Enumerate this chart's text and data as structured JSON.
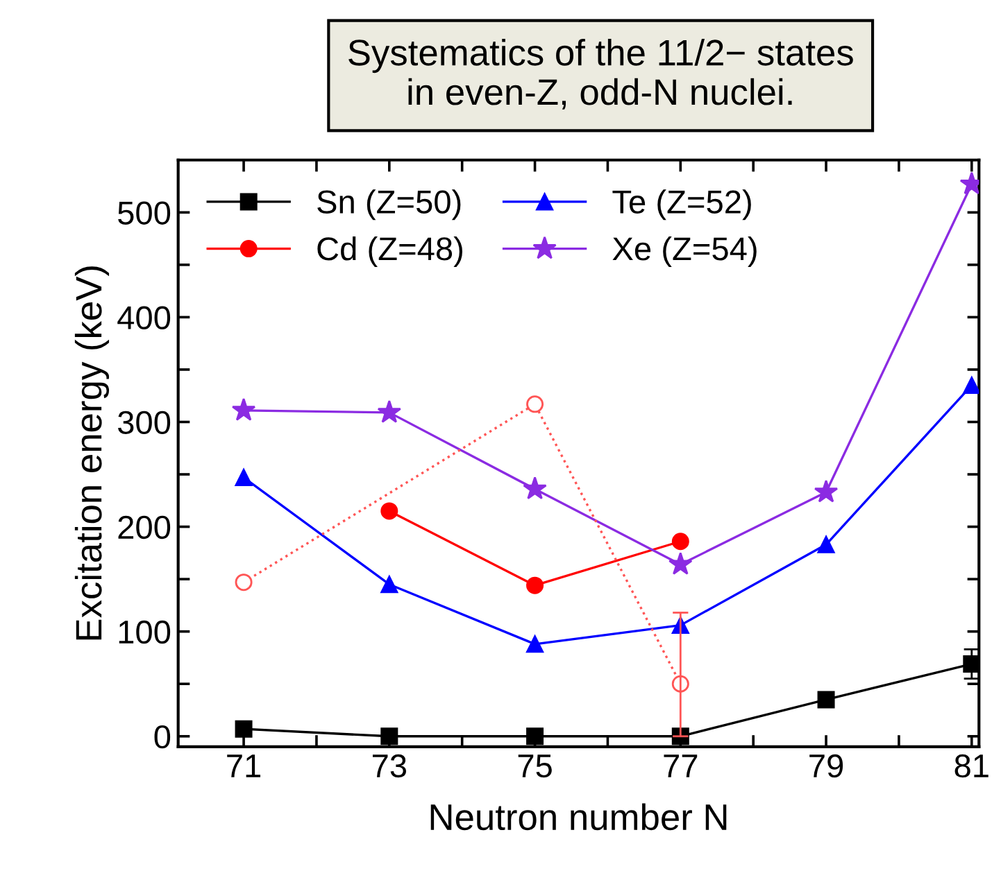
{
  "chart_data": {
    "type": "line",
    "title": "Systematics of the 11/2− states\nin even-Z, odd-N nuclei.",
    "xlabel": "Neutron number N",
    "ylabel": "Excitation energy (keV)",
    "xlim": [
      70.1,
      81.1
    ],
    "ylim": [
      -10,
      550
    ],
    "xticks": [
      71,
      {
        "value": 72,
        "label": null
      },
      73,
      {
        "value": 74,
        "label": null
      },
      75,
      {
        "value": 76,
        "label": null
      },
      77,
      {
        "value": 78,
        "label": null
      },
      79,
      {
        "value": 80,
        "label": null
      },
      81
    ],
    "yticks": [
      0,
      {
        "value": 50,
        "label": null
      },
      100,
      {
        "value": 150,
        "label": null
      },
      200,
      {
        "value": 250,
        "label": null
      },
      300,
      {
        "value": 350,
        "label": null
      },
      400,
      {
        "value": 450,
        "label": null
      },
      500
    ],
    "grid": false,
    "legend": "top left",
    "series": [
      {
        "name": "Sn (Z=50)",
        "color": "#000000",
        "marker": "square",
        "line_style": "solid",
        "x": [
          71,
          73,
          75,
          77,
          79,
          81
        ],
        "values": [
          7,
          0,
          0,
          0,
          35,
          69
        ],
        "errors": [
          null,
          null,
          null,
          null,
          null,
          14
        ]
      },
      {
        "name": "Te (Z=52)",
        "color": "#0000ff",
        "marker": "triangle",
        "line_style": "solid",
        "x": [
          71,
          73,
          75,
          77,
          79,
          81
        ],
        "values": [
          247,
          145,
          88,
          106,
          183,
          335
        ]
      },
      {
        "name": "Cd (Z=48)",
        "color": "#ff0000",
        "marker": "circle",
        "line_style": "solid",
        "x": [
          73,
          75,
          77
        ],
        "values": [
          215,
          144,
          186
        ]
      },
      {
        "name": "Xe (Z=54)",
        "color": "#8b2be2",
        "marker": "star",
        "line_style": "solid",
        "x": [
          71,
          73,
          75,
          77,
          79,
          81
        ],
        "values": [
          311,
          309,
          236,
          164,
          233,
          527
        ]
      },
      {
        "color": "#ff5555",
        "marker": "circle",
        "line_style": "dotted",
        "x": [
          71,
          75,
          77
        ],
        "values": [
          147,
          317,
          50
        ],
        "errors": [
          null,
          null,
          [
            0,
            118
          ]
        ]
      }
    ]
  }
}
